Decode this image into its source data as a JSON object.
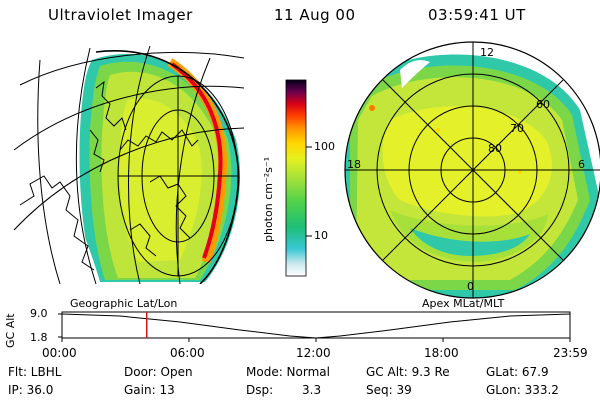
{
  "header": {
    "instrument": "Ultraviolet Imager",
    "date": "11 Aug 00",
    "time": "03:59:41  UT"
  },
  "colorbar": {
    "unit_label": "photon cm⁻²s⁻¹",
    "ticks": [
      "100",
      "10"
    ],
    "colors": [
      "#ffffff",
      "#9ed3e6",
      "#2ec9d0",
      "#1fc07a",
      "#55d24a",
      "#a7e23a",
      "#e6ef20",
      "#ffd600",
      "#ff9b00",
      "#ff4a00",
      "#e00000",
      "#a0003a",
      "#400060",
      "#000020"
    ]
  },
  "maps": {
    "left_label": "Geographic Lat/Lon",
    "right_label": "Apex  MLat/MLT",
    "mlt_labels": {
      "top": "12",
      "left": "18",
      "right": "6",
      "bottom": "0"
    },
    "mlat_labels": [
      "60",
      "70",
      "80"
    ]
  },
  "timeline": {
    "ylabel": "GC Alt",
    "y_ticks": [
      "9.0",
      "1.8"
    ],
    "x_ticks": [
      "00:00",
      "06:00",
      "12:00",
      "18:00",
      "23:59"
    ],
    "current_time_hours": 4.0
  },
  "info": {
    "filter": "Flt: LBHL",
    "door": "Door: Open",
    "mode": "Mode: Normal",
    "gc_alt": "GC Alt: 9.3 Re",
    "glat": "GLat:  67.9",
    "ip": "IP: 36.0",
    "gain": "Gain: 13",
    "dsp_label": "Dsp:",
    "dsp_value": "3.3",
    "seq": "Seq: 39",
    "glon": "GLon: 333.2"
  }
}
